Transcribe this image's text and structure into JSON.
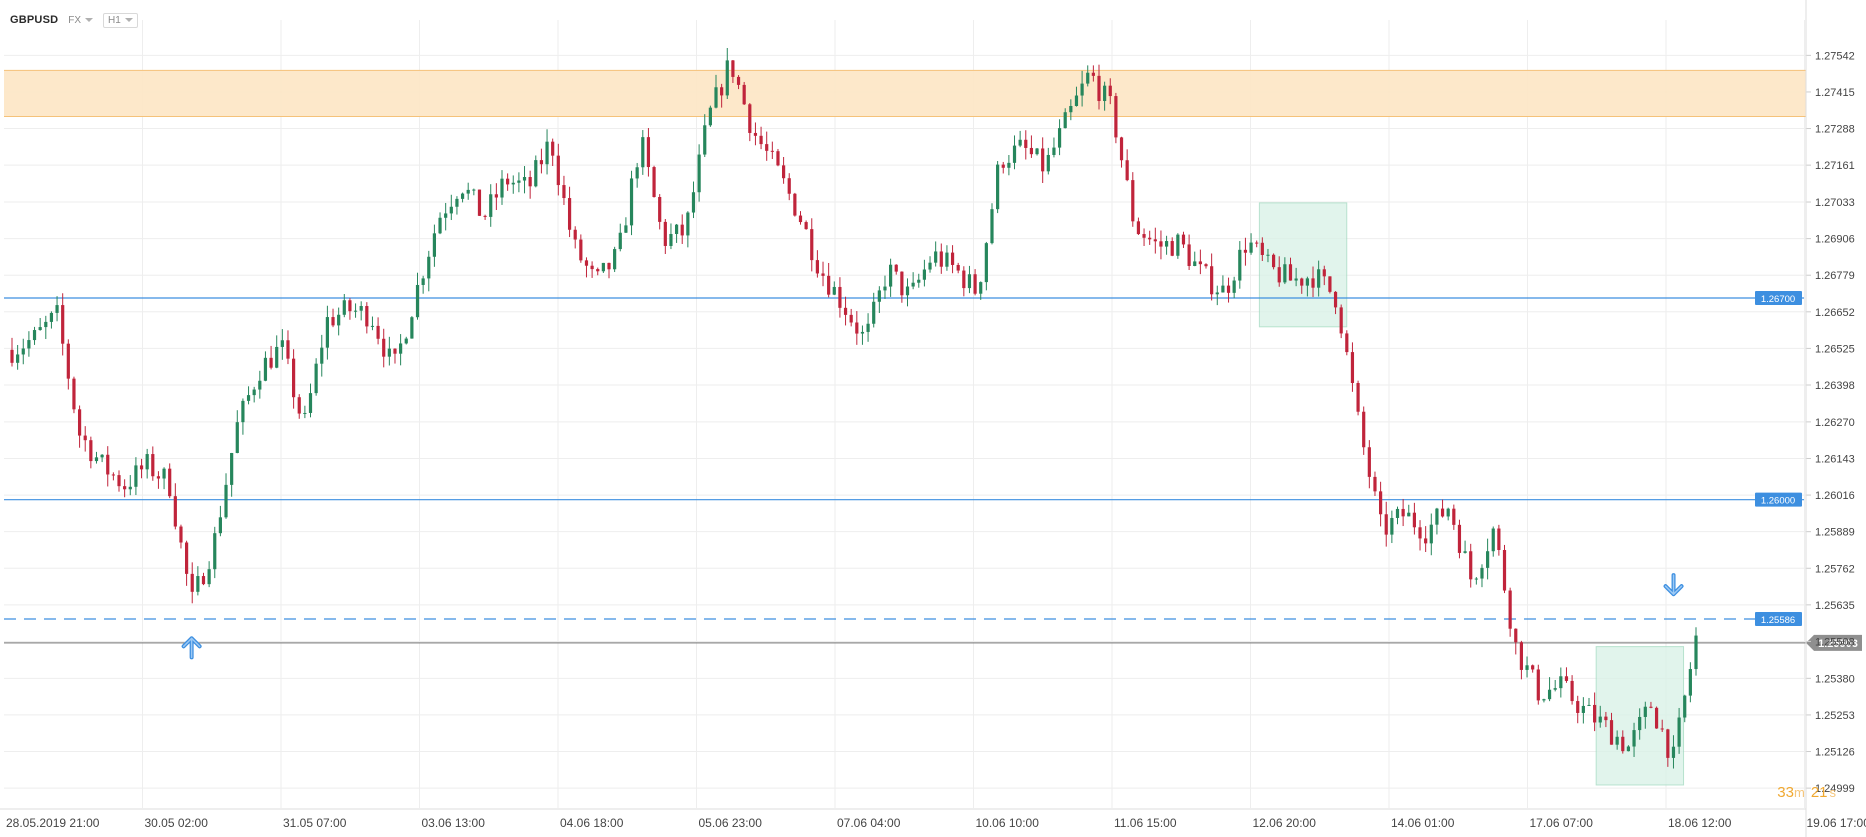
{
  "toolbar": {
    "symbol": "GBPUSD",
    "market": "FX",
    "timeframe": "H1"
  },
  "countdown": {
    "minutes": "33",
    "m_unit": "m",
    "seconds": "21",
    "s_unit": "s"
  },
  "chart_data": {
    "type": "candlestick",
    "ylim": [
      1.2493,
      1.2763
    ],
    "y_ticks": [
      "1.27542",
      "1.27415",
      "1.27288",
      "1.27161",
      "1.27033",
      "1.26906",
      "1.26779",
      "1.26652",
      "1.26525",
      "1.26398",
      "1.26270",
      "1.26143",
      "1.26016",
      "1.25889",
      "1.25762",
      "1.25635",
      "1.25508",
      "1.25380",
      "1.25253",
      "1.25126",
      "1.24999"
    ],
    "x_ticks": [
      "28.05.2019  21:00",
      "30.05  02:00",
      "31.05  07:00",
      "03.06  13:00",
      "04.06  18:00",
      "05.06  23:00",
      "07.06  04:00",
      "10.06  10:00",
      "11.06  15:00",
      "12.06  20:00",
      "14.06  01:00",
      "17.06  07:00",
      "18.06  12:00",
      "19.06  17:00"
    ],
    "grid": true,
    "colors": {
      "up": "#26865c",
      "down": "#c0243b",
      "level_line": "#3d8fe0",
      "price_line": "#8c8c8c",
      "zone_fill": "#fde6c4",
      "box_fill": "#d8f1e6"
    },
    "resistance_zone": {
      "from": 1.2733,
      "to": 1.2749
    },
    "levels": [
      {
        "price": 1.267,
        "label": "1.26700",
        "style": "solid"
      },
      {
        "price": 1.26,
        "label": "1.26000",
        "style": "solid"
      },
      {
        "price": 1.25586,
        "label": "1.25586",
        "style": "dashed"
      }
    ],
    "current_price": {
      "price": 1.25503,
      "label": "1.25503"
    },
    "bullet_path": [
      1.2652,
      1.2656,
      1.2664,
      1.2623,
      1.2612,
      1.2605,
      1.2612,
      1.2606,
      1.2564,
      1.2585,
      1.2625,
      1.2645,
      1.2653,
      1.2625,
      1.2662,
      1.2666,
      1.2664,
      1.2645,
      1.2672,
      1.2698,
      1.271,
      1.2698,
      1.2711,
      1.2708,
      1.2725,
      1.2688,
      1.2675,
      1.2685,
      1.2725,
      1.269,
      1.2693,
      1.2732,
      1.2752,
      1.2728,
      1.2715,
      1.27,
      1.268,
      1.2668,
      1.2655,
      1.268,
      1.267,
      1.2685,
      1.268,
      1.2672,
      1.2718,
      1.2722,
      1.2715,
      1.2732,
      1.2748,
      1.2735,
      1.2695,
      1.2688,
      1.2689,
      1.2678,
      1.2672,
      1.269,
      1.268,
      1.2676,
      1.2678,
      1.267,
      1.2625,
      1.2589,
      1.2595,
      1.2589,
      1.2598,
      1.2572,
      1.259,
      1.2548,
      1.2533,
      1.2535,
      1.2527,
      1.2521,
      1.2514,
      1.2529,
      1.251,
      1.2552
    ],
    "markers": [
      {
        "type": "arrow-up",
        "at_index": 8,
        "price": 1.2555
      },
      {
        "type": "arrow-down",
        "at_index": 74,
        "price": 1.2562
      }
    ],
    "highlight_boxes": [
      {
        "x_from_index": 56,
        "x_to_index": 59,
        "price_from": 1.2703,
        "price_to": 1.266
      },
      {
        "x_from_index": 71,
        "x_to_index": 74,
        "price_from": 1.2549,
        "price_to": 1.2501
      }
    ]
  }
}
